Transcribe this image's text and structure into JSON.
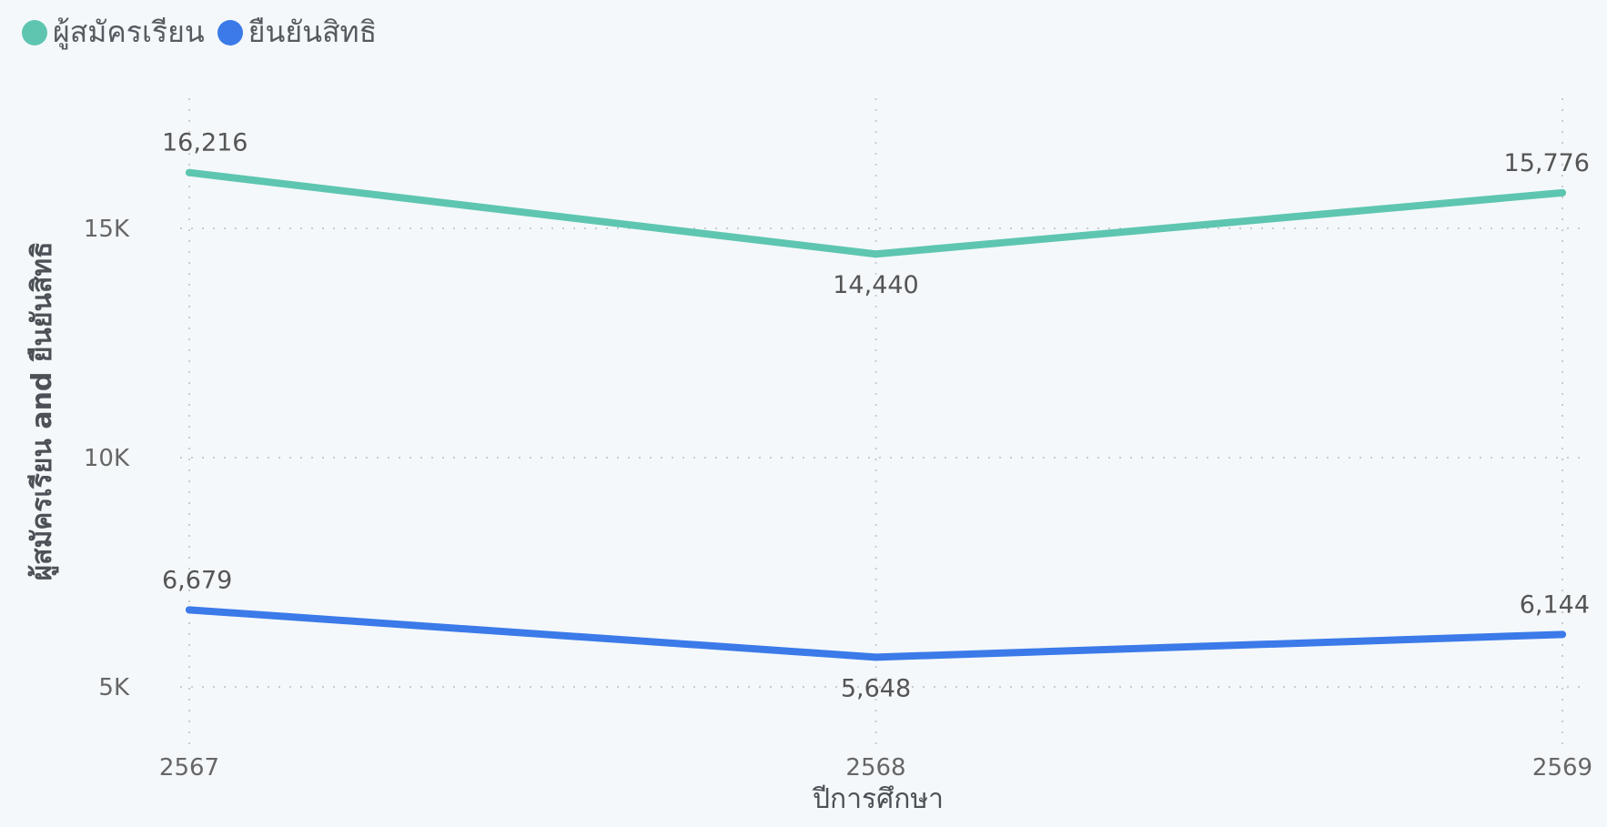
{
  "chart_data": {
    "type": "line",
    "categories": [
      "2567",
      "2568",
      "2569"
    ],
    "series": [
      {
        "name": "ผู้สมัครเรียน",
        "values": [
          16216,
          14440,
          15776
        ],
        "labels": [
          "16,216",
          "14,440",
          "15,776"
        ],
        "color": "#5ec6b0"
      },
      {
        "name": "ยืนยันสิทธิ",
        "values": [
          6679,
          5648,
          6144
        ],
        "labels": [
          "6,679",
          "5,648",
          "6,144"
        ],
        "color": "#3b7ae8"
      }
    ],
    "xlabel": "ปีการศึกษา",
    "ylabel": "ผู้สมัครเรียน and ยืนยันสิทธิ",
    "yticks": [
      {
        "value": 5000,
        "label": "5K"
      },
      {
        "value": 10000,
        "label": "10K"
      },
      {
        "value": 15000,
        "label": "15K"
      }
    ],
    "grid": true,
    "legend_position": "top-left"
  }
}
